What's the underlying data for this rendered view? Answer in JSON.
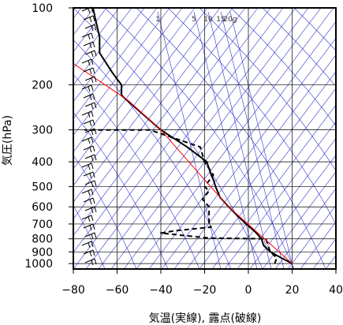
{
  "chart_data": {
    "type": "line",
    "xlabel": "気温(実線), 露点(破線)",
    "ylabel": "気圧(hPa)",
    "xlim": [
      -80,
      40
    ],
    "ylim": [
      1050,
      100
    ],
    "y_scale": "log",
    "x_ticks": [
      -80,
      -60,
      -40,
      -20,
      0,
      20,
      40
    ],
    "x_tick_labels": [
      "−80",
      "−60",
      "−40",
      "−20",
      "0",
      "20",
      "40"
    ],
    "y_ticks": [
      100,
      200,
      300,
      400,
      500,
      600,
      700,
      800,
      900,
      1000
    ],
    "y_tick_labels": [
      "100",
      "200",
      "300",
      "400",
      "500",
      "600",
      "700",
      "800",
      "900",
      "1000"
    ],
    "mixing_ratio_labels": [
      "1",
      "5",
      "10",
      "15",
      "20g"
    ],
    "mixing_ratio_values": [
      1,
      5,
      10,
      15,
      20
    ],
    "colors": {
      "temperature": "#000000",
      "dewpoint": "#000000",
      "parcel": "#ff0000",
      "isotherms": "#3333cc",
      "grid": "#000000"
    },
    "series": [
      {
        "key": "temperature",
        "style": "solid",
        "points": [
          [
            20,
            1000
          ],
          [
            15,
            950
          ],
          [
            10,
            900
          ],
          [
            7,
            850
          ],
          [
            6,
            800
          ],
          [
            3,
            750
          ],
          [
            -1,
            700
          ],
          [
            -5,
            650
          ],
          [
            -9,
            600
          ],
          [
            -13,
            550
          ],
          [
            -15,
            500
          ],
          [
            -16,
            470
          ],
          [
            -17,
            450
          ],
          [
            -19,
            400
          ],
          [
            -28,
            350
          ],
          [
            -40,
            300
          ],
          [
            -58,
            220
          ],
          [
            -58,
            200
          ],
          [
            -62,
            180
          ],
          [
            -68,
            150
          ],
          [
            -68,
            130
          ],
          [
            -70,
            110
          ],
          [
            -71,
            100
          ]
        ]
      },
      {
        "key": "dewpoint",
        "style": "dashed",
        "points": [
          [
            12,
            1000
          ],
          [
            13,
            950
          ],
          [
            10,
            900
          ],
          [
            9,
            850
          ],
          [
            8,
            800
          ],
          [
            -18,
            795
          ],
          [
            -40,
            760
          ],
          [
            -34,
            745
          ],
          [
            -17,
            720
          ],
          [
            -18,
            700
          ],
          [
            -18,
            600
          ],
          [
            -21,
            560
          ],
          [
            -18,
            520
          ],
          [
            -20,
            500
          ],
          [
            -16,
            450
          ],
          [
            -20,
            400
          ],
          [
            -22,
            350
          ],
          [
            -45,
            300
          ],
          [
            -75,
            300
          ]
        ]
      },
      {
        "key": "parcel",
        "style": "solid",
        "points": [
          [
            20,
            1000
          ],
          [
            -9,
            600
          ],
          [
            -22,
            450
          ],
          [
            -40,
            300
          ],
          [
            -55,
            230
          ],
          [
            -80,
            165
          ]
        ]
      }
    ],
    "wind_barbs_column": "left"
  }
}
